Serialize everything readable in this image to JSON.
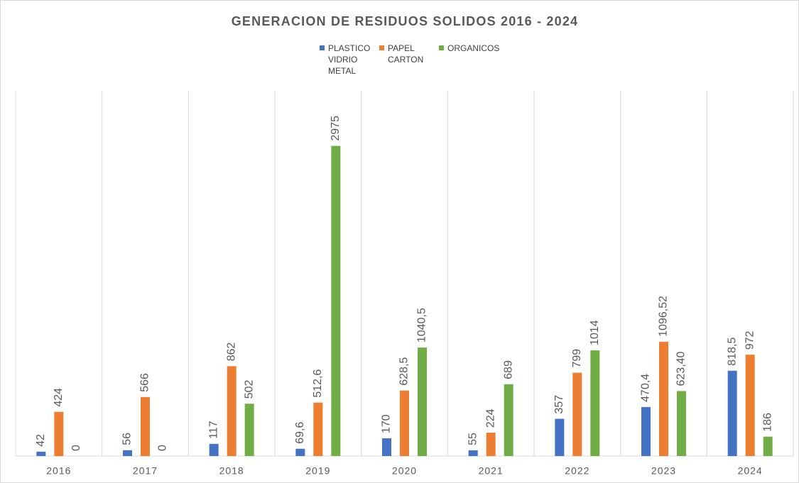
{
  "chart_data": {
    "type": "bar",
    "title": "GENERACION DE RESIDUOS SOLIDOS 2016 - 2024",
    "categories": [
      "2016",
      "2017",
      "2018",
      "2019",
      "2020",
      "2021",
      "2022",
      "2023",
      "2024"
    ],
    "series": [
      {
        "name": "PLASTICO VIDRIO METAL",
        "color": "#4472c4",
        "values": [
          42,
          56,
          117,
          69.6,
          170,
          55,
          357,
          470.4,
          818.5
        ],
        "value_labels": [
          "42",
          "56",
          "117",
          "69,6",
          "170",
          "55",
          "357",
          "470,4",
          "818,5"
        ]
      },
      {
        "name": "PAPEL CARTON",
        "color": "#ed7d31",
        "values": [
          424,
          566,
          862,
          512.6,
          628.5,
          224,
          799,
          1096.52,
          972
        ],
        "value_labels": [
          "424",
          "566",
          "862",
          "512,6",
          "628,5",
          "224",
          "799",
          "1096,52",
          "972"
        ]
      },
      {
        "name": "ORGANICOS",
        "color": "#70ad47",
        "values": [
          0,
          0,
          502,
          2975,
          1040.5,
          689,
          1014,
          623.4,
          186
        ],
        "value_labels": [
          "0",
          "0",
          "502",
          "2975",
          "1040,5",
          "689",
          "1014",
          "623,40",
          "186"
        ]
      }
    ],
    "ylim": [
      0,
      3000
    ]
  }
}
